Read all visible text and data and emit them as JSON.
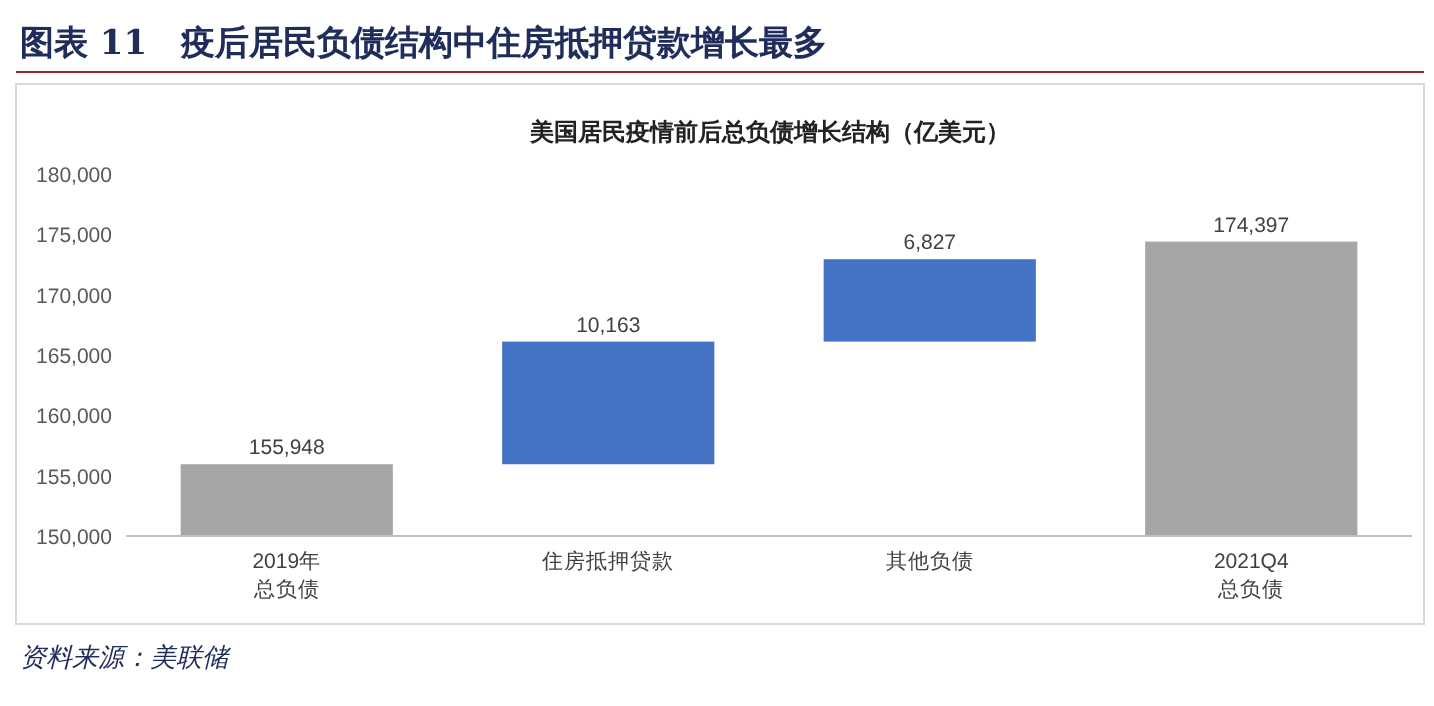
{
  "chart_data": {
    "type": "bar",
    "title": "图表 11　疫后居民负债结构中住房抵押贷款增长最多",
    "subtitle": "美国居民疫情前后总负债增长结构（亿美元）",
    "categories": [
      "2019年总负债",
      "住房抵押贷款",
      "其他负债",
      "2021Q4总负债"
    ],
    "values": [
      155948,
      10163,
      6827,
      174397
    ],
    "base": [
      0,
      155948,
      166111,
      0
    ],
    "colors": [
      "#a6a6a6",
      "#4472c4",
      "#4472c4",
      "#a6a6a6"
    ],
    "value_labels": [
      "155,948",
      "10,163",
      "6,827",
      "174,397"
    ],
    "ylim": [
      150000,
      180000
    ],
    "yticks": [
      {
        "value": 150000,
        "label": "150,000"
      },
      {
        "value": 155000,
        "label": "155,000"
      },
      {
        "value": 160000,
        "label": "160,000"
      },
      {
        "value": 165000,
        "label": "165,000"
      },
      {
        "value": 170000,
        "label": "170,000"
      },
      {
        "value": 175000,
        "label": "175,000"
      },
      {
        "value": 180000,
        "label": "180,000"
      }
    ],
    "grid": false,
    "annotations": [
      "资料来源：美联储"
    ]
  }
}
